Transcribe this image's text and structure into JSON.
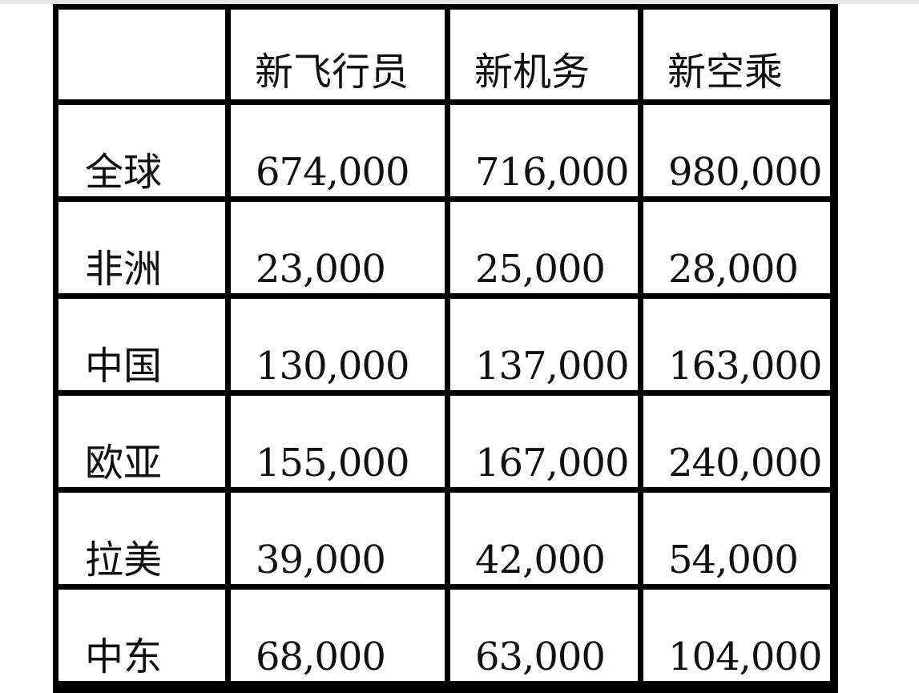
{
  "table": {
    "headers": [
      "",
      "新飞行员",
      "新机务",
      "新空乘"
    ],
    "rows": [
      {
        "label": "全球",
        "values": [
          "674,000",
          "716,000",
          "980,000"
        ]
      },
      {
        "label": "非洲",
        "values": [
          "23,000",
          "25,000",
          "28,000"
        ]
      },
      {
        "label": "中国",
        "values": [
          "130,000",
          "137,000",
          "163,000"
        ]
      },
      {
        "label": "欧亚",
        "values": [
          "155,000",
          "167,000",
          "240,000"
        ]
      },
      {
        "label": "拉美",
        "values": [
          "39,000",
          "42,000",
          "54,000"
        ]
      },
      {
        "label": "中东",
        "values": [
          "68,000",
          "63,000",
          "104,000"
        ]
      }
    ]
  }
}
